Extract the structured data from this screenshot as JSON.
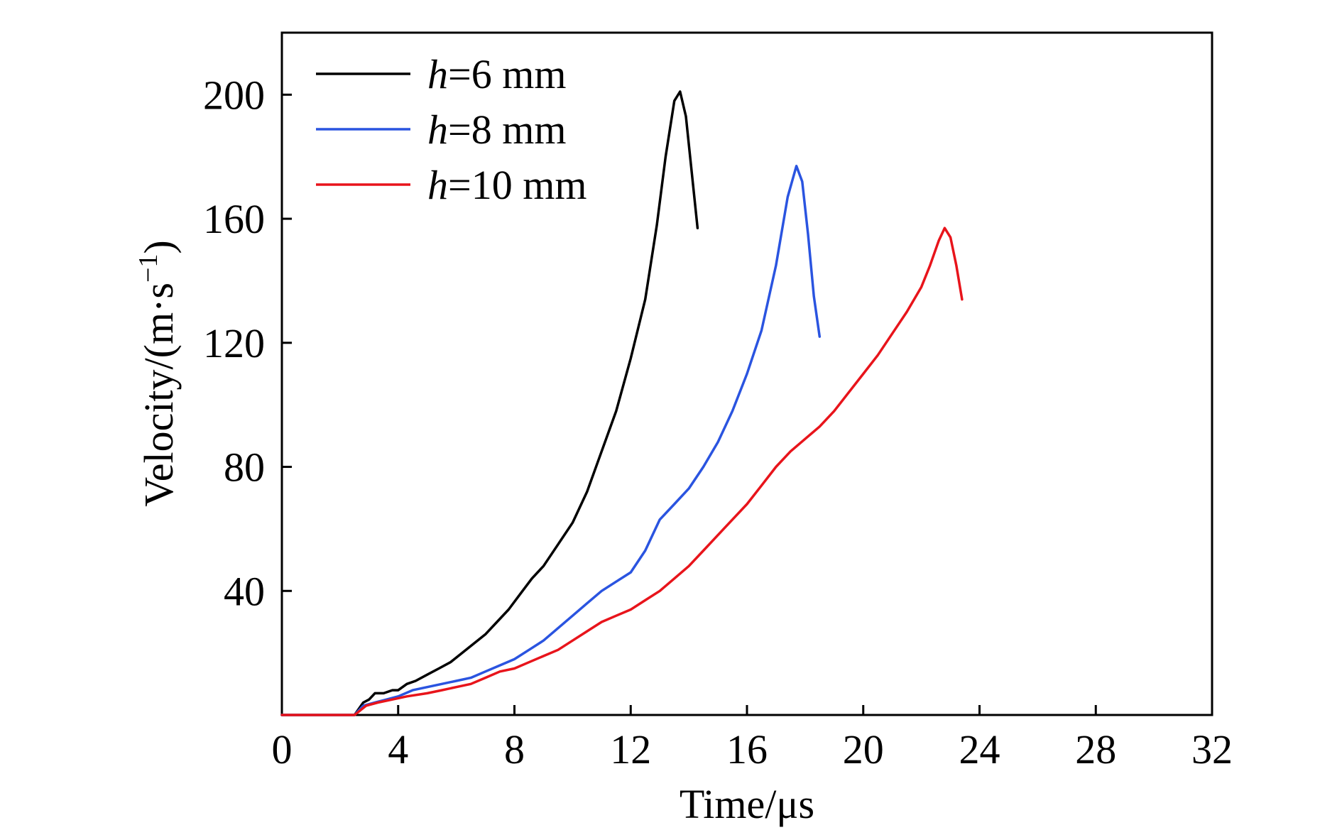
{
  "chart_data": {
    "type": "line",
    "title": "",
    "xlabel": "Time/μs",
    "ylabel": "Velocity/(m·s⁻¹)",
    "ylabel_parts": {
      "main": "Velocity/(m·s",
      "sup": "−1",
      "close": ")"
    },
    "xlim": [
      0,
      32
    ],
    "ylim": [
      0,
      220
    ],
    "xticks": [
      0,
      4,
      8,
      12,
      16,
      20,
      24,
      28,
      32
    ],
    "yticks": [
      40,
      80,
      120,
      160,
      200
    ],
    "xtick_labels": [
      "0",
      "4",
      "8",
      "12",
      "16",
      "20",
      "24",
      "28",
      "32"
    ],
    "ytick_labels": [
      "40",
      "80",
      "120",
      "160",
      "200"
    ],
    "grid": false,
    "legend_position": "top-left",
    "series": [
      {
        "name": "h=6 mm",
        "name_var": "h",
        "name_rest": "=6 mm",
        "color": "#000000",
        "x": [
          0,
          2.5,
          2.8,
          3.0,
          3.2,
          3.5,
          3.8,
          4.0,
          4.3,
          4.6,
          5.0,
          5.4,
          5.8,
          6.2,
          6.6,
          7.0,
          7.4,
          7.8,
          8.2,
          8.6,
          9.0,
          9.5,
          10.0,
          10.5,
          11.0,
          11.5,
          12.0,
          12.5,
          12.9,
          13.2,
          13.5,
          13.7,
          13.9,
          14.1,
          14.3
        ],
        "y": [
          0,
          0,
          4,
          5,
          7,
          7,
          8,
          8,
          10,
          11,
          13,
          15,
          17,
          20,
          23,
          26,
          30,
          34,
          39,
          44,
          48,
          55,
          62,
          72,
          85,
          98,
          115,
          134,
          158,
          180,
          198,
          201,
          193,
          175,
          157
        ]
      },
      {
        "name": "h=8 mm",
        "name_var": "h",
        "name_rest": "=8 mm",
        "color": "#2a54e0",
        "x": [
          0,
          2.5,
          2.8,
          3.2,
          3.6,
          4.0,
          4.5,
          5.0,
          5.5,
          6.0,
          6.5,
          7.0,
          7.5,
          8.0,
          8.5,
          9.0,
          9.5,
          10.0,
          10.5,
          11.0,
          11.5,
          12.0,
          12.5,
          13.0,
          13.5,
          14.0,
          14.5,
          15.0,
          15.5,
          16.0,
          16.5,
          17.0,
          17.4,
          17.7,
          17.9,
          18.1,
          18.3,
          18.5
        ],
        "y": [
          0,
          0,
          3,
          4,
          5,
          6,
          8,
          9,
          10,
          11,
          12,
          14,
          16,
          18,
          21,
          24,
          28,
          32,
          36,
          40,
          43,
          46,
          53,
          63,
          68,
          73,
          80,
          88,
          98,
          110,
          124,
          145,
          167,
          177,
          172,
          155,
          135,
          122
        ]
      },
      {
        "name": "h=10 mm",
        "name_var": "h",
        "name_rest": "=10 mm",
        "color": "#e8141b",
        "x": [
          0,
          2.5,
          2.9,
          3.3,
          3.8,
          4.3,
          5.0,
          5.5,
          6.0,
          6.5,
          7.0,
          7.5,
          8.0,
          8.5,
          9.0,
          9.5,
          10.0,
          10.5,
          11.0,
          11.5,
          12.0,
          12.5,
          13.0,
          13.5,
          14.0,
          14.5,
          15.0,
          15.5,
          16.0,
          16.5,
          17.0,
          17.5,
          18.0,
          18.5,
          19.0,
          19.5,
          20.0,
          20.5,
          21.0,
          21.5,
          22.0,
          22.3,
          22.6,
          22.8,
          23.0,
          23.2,
          23.4
        ],
        "y": [
          0,
          0,
          3,
          4,
          5,
          6,
          7,
          8,
          9,
          10,
          12,
          14,
          15,
          17,
          19,
          21,
          24,
          27,
          30,
          32,
          34,
          37,
          40,
          44,
          48,
          53,
          58,
          63,
          68,
          74,
          80,
          85,
          89,
          93,
          98,
          104,
          110,
          116,
          123,
          130,
          138,
          145,
          153,
          157,
          154,
          145,
          134
        ]
      }
    ]
  }
}
